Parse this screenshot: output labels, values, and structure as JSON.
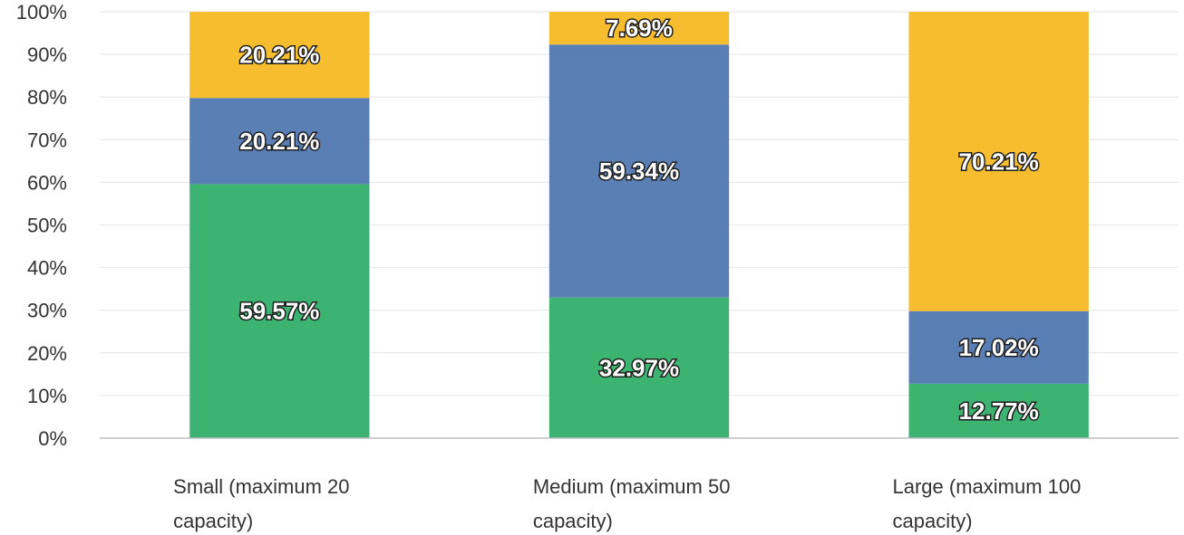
{
  "chart_data": {
    "type": "bar",
    "stacked": true,
    "categories": [
      [
        "Small (maximum 20",
        "capacity)"
      ],
      [
        "Medium (maximum 50",
        "capacity)"
      ],
      [
        "Large (maximum 100",
        "capacity)"
      ]
    ],
    "series": [
      {
        "color": "#3cb371",
        "values": [
          59.57,
          32.97,
          12.77
        ],
        "labels": [
          "59.57%",
          "32.97%",
          "12.77%"
        ]
      },
      {
        "color": "#5a7fb5",
        "values": [
          20.21,
          59.34,
          17.02
        ],
        "labels": [
          "20.21%",
          "59.34%",
          "17.02%"
        ]
      },
      {
        "color": "#f6bd2e",
        "values": [
          20.21,
          7.69,
          70.21
        ],
        "labels": [
          "20.21%",
          "7.69%",
          "70.21%"
        ]
      }
    ],
    "ylim": [
      0,
      100
    ],
    "yticks": [
      "0%",
      "10%",
      "20%",
      "30%",
      "40%",
      "50%",
      "60%",
      "70%",
      "80%",
      "90%",
      "100%"
    ],
    "grid": true,
    "title": "",
    "xlabel": "",
    "ylabel": ""
  }
}
